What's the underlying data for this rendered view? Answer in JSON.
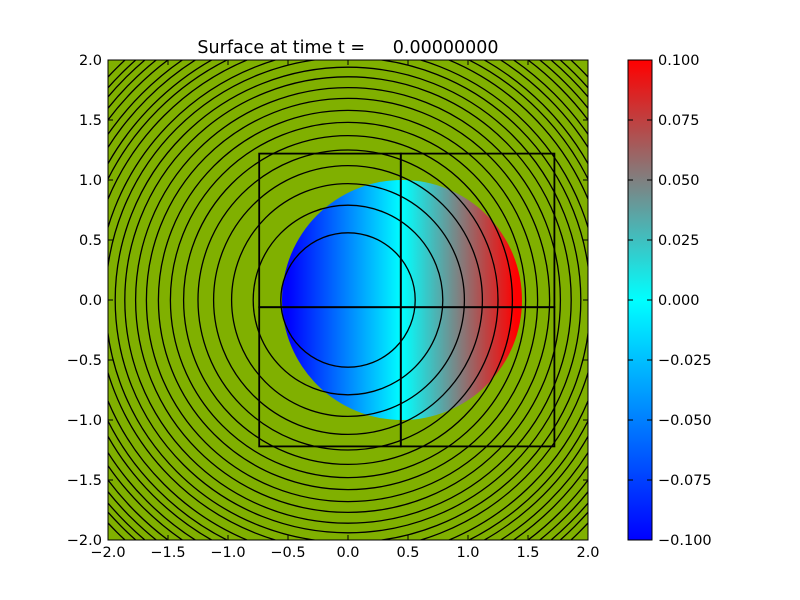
{
  "chart_data": {
    "type": "heatmap",
    "title": "Surface at time t =     0.00000000",
    "xlabel": "",
    "ylabel": "",
    "xlim": [
      -2.0,
      2.0
    ],
    "ylim": [
      -2.0,
      2.0
    ],
    "x_ticks": [
      -2.0,
      -1.5,
      -1.0,
      -0.5,
      0.0,
      0.5,
      1.0,
      1.5,
      2.0
    ],
    "y_ticks": [
      -2.0,
      -1.5,
      -1.0,
      -0.5,
      0.0,
      0.5,
      1.0,
      1.5,
      2.0
    ],
    "x_tick_labels": [
      "−2.0",
      "−1.5",
      "−1.0",
      "−0.5",
      "0.0",
      "0.5",
      "1.0",
      "1.5",
      "2.0"
    ],
    "y_tick_labels": [
      "−2.0",
      "−1.5",
      "−1.0",
      "−0.5",
      "0.0",
      "0.5",
      "1.0",
      "1.5",
      "2.0"
    ],
    "background_color": "#80b000",
    "surface": {
      "region_center": [
        0.45,
        0.0
      ],
      "region_radius": 1.0,
      "value_min": -0.1,
      "value_max": 0.1,
      "x_at_min": -0.5,
      "x_at_max": 1.4
    },
    "contour_levels_radius": [
      0.56,
      0.79,
      0.97,
      1.12,
      1.25,
      1.37,
      1.48,
      1.58,
      1.68,
      1.77,
      1.86,
      1.94,
      2.02,
      2.09,
      2.17,
      2.24,
      2.3,
      2.37,
      2.43,
      2.5,
      2.56,
      2.62,
      2.67,
      2.73
    ],
    "contour_color": "#000000",
    "grid_patches": [
      {
        "x0": -0.74,
        "x1": 0.44,
        "y0": -1.22,
        "y1": -0.06
      },
      {
        "x0": -0.74,
        "x1": 0.44,
        "y0": -0.06,
        "y1": 1.22
      },
      {
        "x0": 0.44,
        "x1": 1.72,
        "y0": -1.22,
        "y1": -0.06
      },
      {
        "x0": 0.44,
        "x1": 1.72,
        "y0": -0.06,
        "y1": 1.22
      }
    ],
    "colorbar": {
      "range": [
        -0.1,
        0.1
      ],
      "ticks": [
        -0.1,
        -0.075,
        -0.05,
        -0.025,
        0.0,
        0.025,
        0.05,
        0.075,
        0.1
      ],
      "tick_labels": [
        "−0.100",
        "−0.075",
        "−0.050",
        "−0.025",
        "0.000",
        "0.025",
        "0.050",
        "0.075",
        "0.100"
      ],
      "colors": [
        {
          "v": -0.1,
          "color": "#0000ff"
        },
        {
          "v": 0.0,
          "color": "#00ffff"
        },
        {
          "v": 0.05,
          "color": "#808080"
        },
        {
          "v": 0.1,
          "color": "#ff0000"
        }
      ]
    }
  }
}
